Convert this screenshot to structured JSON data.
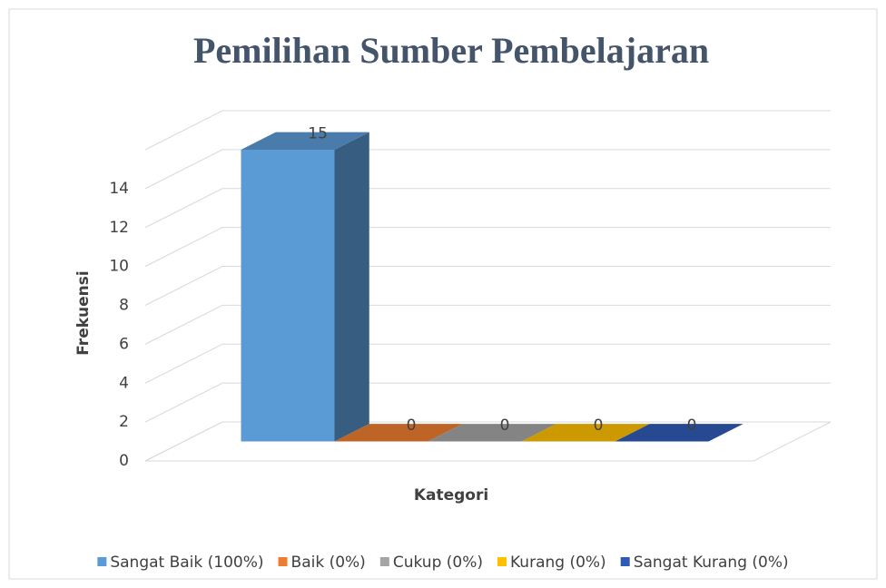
{
  "chart_data": {
    "type": "bar3d",
    "title": "Pemilihan Sumber Pembelajaran",
    "y_label": "Frekuensi",
    "x_label": "Kategori",
    "ylim": [
      0,
      16
    ],
    "yticks": [
      0,
      2,
      4,
      6,
      8,
      10,
      12,
      14
    ],
    "grid": true,
    "legend": "bottom",
    "series": [
      {
        "name": "Sangat Baik (100%)",
        "color": "#5b9bd5",
        "values": [
          15
        ]
      },
      {
        "name": "Baik (0%)",
        "color": "#ed7d31",
        "values": [
          0
        ]
      },
      {
        "name": "Cukup (0%)",
        "color": "#a5a5a5",
        "values": [
          0
        ]
      },
      {
        "name": "Kurang (0%)",
        "color": "#ffc000",
        "values": [
          0
        ]
      },
      {
        "name": "Sangat Kurang (0%)",
        "color": "#2f5bb7",
        "values": [
          0
        ]
      }
    ]
  }
}
